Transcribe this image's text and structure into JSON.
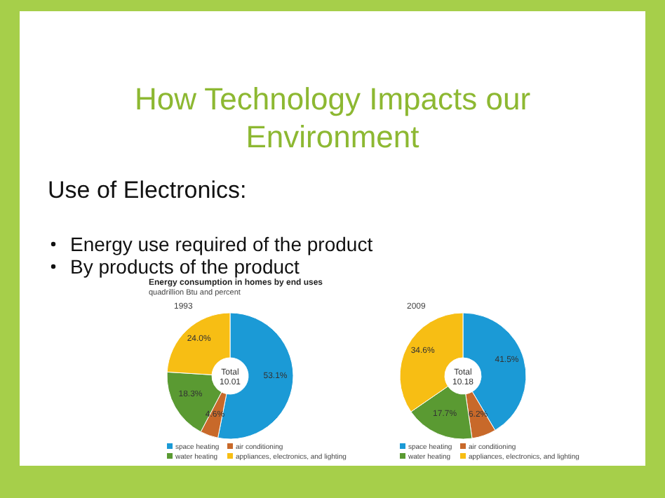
{
  "chart_data": [
    {
      "type": "other",
      "title": "How Technology Impacts our Environment",
      "annotations": [
        "Use of Electronics:",
        "Energy use required of the product",
        "By products of the product"
      ]
    },
    {
      "type": "donut",
      "title": "Energy consumption in homes by end uses",
      "subtitle": "quadrillion Btu and percent",
      "xlabel": "1993",
      "categories": [
        "space heating",
        "air conditioning",
        "water heating",
        "appliances, electronics, and lighting"
      ],
      "values": [
        53.1,
        4.6,
        18.3,
        24.0
      ],
      "value_labels": [
        "53.1%",
        "4.6%",
        "18.3%",
        "24.0%"
      ],
      "colors": [
        "#1b9ad6",
        "#c8692a",
        "#5a9a32",
        "#f7be14"
      ],
      "annotations": [
        "Total",
        "10.01"
      ],
      "legend": "bottom"
    },
    {
      "type": "donut",
      "xlabel": "2009",
      "categories": [
        "space heating",
        "air conditioning",
        "water heating",
        "appliances, electronics, and lighting"
      ],
      "values": [
        41.5,
        6.2,
        17.7,
        34.6
      ],
      "value_labels": [
        "41.5%",
        "6.2%",
        "17.7%",
        "34.6%"
      ],
      "colors": [
        "#1b9ad6",
        "#c8692a",
        "#5a9a32",
        "#f7be14"
      ],
      "annotations": [
        "Total",
        "10.18"
      ],
      "legend": "bottom"
    }
  ]
}
